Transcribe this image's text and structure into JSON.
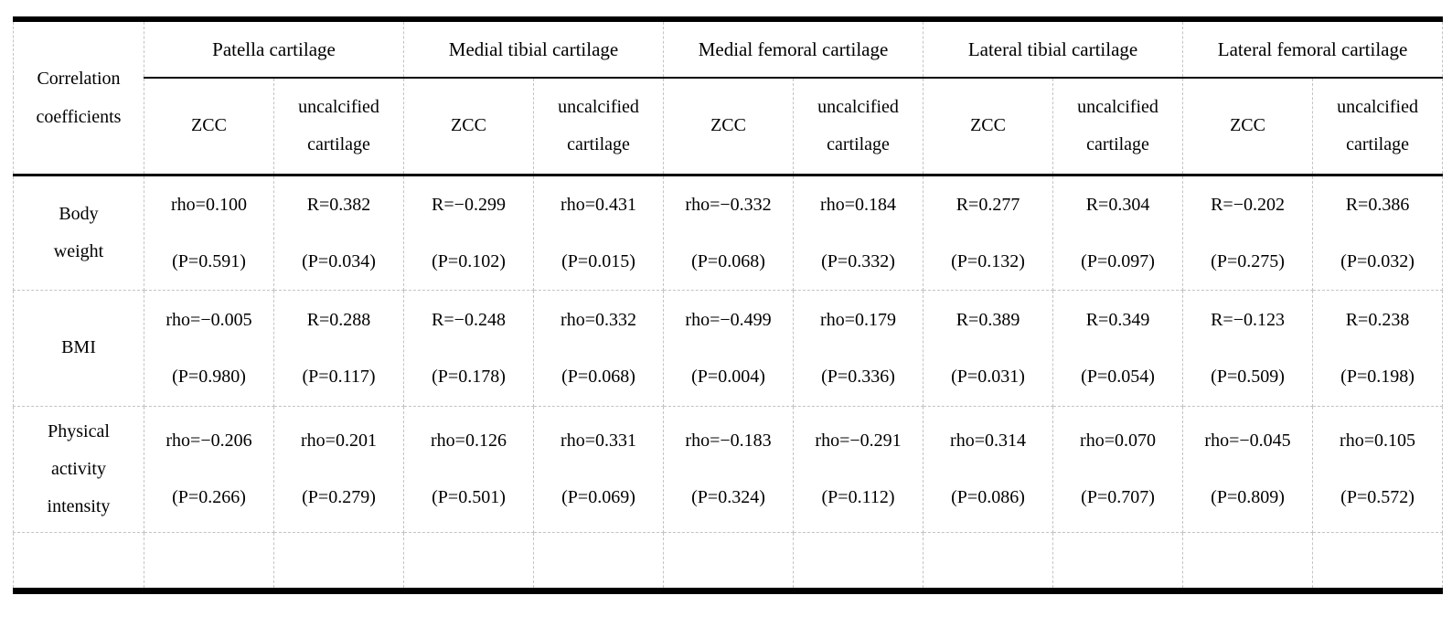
{
  "table": {
    "corner_label": "Correlation\ncoefficients",
    "group_headers": [
      "Patella cartilage",
      "Medial tibial cartilage",
      "Medial femoral cartilage",
      "Lateral tibial cartilage",
      "Lateral femoral cartilage"
    ],
    "subheaders": {
      "zcc": "ZCC",
      "uncalcified": "uncalcified\ncartilage"
    },
    "rows": [
      {
        "label": "Body\nweight",
        "cells": [
          {
            "coef": "rho=0.100",
            "p": "(P=0.591)"
          },
          {
            "coef": "R=0.382",
            "p": "(P=0.034)"
          },
          {
            "coef": "R=−0.299",
            "p": "(P=0.102)"
          },
          {
            "coef": "rho=0.431",
            "p": "(P=0.015)"
          },
          {
            "coef": "rho=−0.332",
            "p": "(P=0.068)"
          },
          {
            "coef": "rho=0.184",
            "p": "(P=0.332)"
          },
          {
            "coef": "R=0.277",
            "p": "(P=0.132)"
          },
          {
            "coef": "R=0.304",
            "p": "(P=0.097)"
          },
          {
            "coef": "R=−0.202",
            "p": "(P=0.275)"
          },
          {
            "coef": "R=0.386",
            "p": "(P=0.032)"
          }
        ]
      },
      {
        "label": "BMI",
        "cells": [
          {
            "coef": "rho=−0.005",
            "p": "(P=0.980)"
          },
          {
            "coef": "R=0.288",
            "p": "(P=0.117)"
          },
          {
            "coef": "R=−0.248",
            "p": "(P=0.178)"
          },
          {
            "coef": "rho=0.332",
            "p": "(P=0.068)"
          },
          {
            "coef": "rho=−0.499",
            "p": "(P=0.004)"
          },
          {
            "coef": "rho=0.179",
            "p": "(P=0.336)"
          },
          {
            "coef": "R=0.389",
            "p": "(P=0.031)"
          },
          {
            "coef": "R=0.349",
            "p": "(P=0.054)"
          },
          {
            "coef": "R=−0.123",
            "p": "(P=0.509)"
          },
          {
            "coef": "R=0.238",
            "p": "(P=0.198)"
          }
        ]
      },
      {
        "label": "Physical\nactivity\nintensity",
        "cells": [
          {
            "coef": "rho=−0.206",
            "p": "(P=0.266)"
          },
          {
            "coef": "rho=0.201",
            "p": "(P=0.279)"
          },
          {
            "coef": "rho=0.126",
            "p": "(P=0.501)"
          },
          {
            "coef": "rho=0.331",
            "p": "(P=0.069)"
          },
          {
            "coef": "rho=−0.183",
            "p": "(P=0.324)"
          },
          {
            "coef": "rho=−0.291",
            "p": "(P=0.112)"
          },
          {
            "coef": "rho=0.314",
            "p": "(P=0.086)"
          },
          {
            "coef": "rho=0.070",
            "p": "(P=0.707)"
          },
          {
            "coef": "rho=−0.045",
            "p": "(P=0.809)"
          },
          {
            "coef": "rho=0.105",
            "p": "(P=0.572)"
          }
        ]
      }
    ]
  }
}
